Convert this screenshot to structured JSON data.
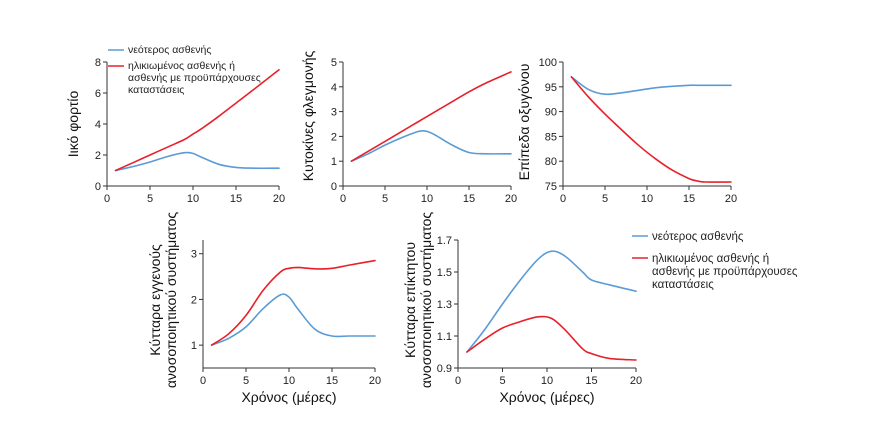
{
  "legend_top": {
    "young": "νεότερος ασθενής",
    "old_lines": [
      "ηλικιωμένος ασθενής ή",
      "ασθενής με προϋπάρχουσες",
      "καταστάσεις"
    ]
  },
  "legend_right": {
    "young": "νεότερος ασθενής",
    "old_lines": [
      "ηλικιωμένος ασθενής ή",
      "ασθενής με προϋπάρχουσες",
      "καταστάσεις"
    ]
  },
  "colors": {
    "young": "#5b9bd5",
    "old": "#e8202a"
  },
  "chart_data": [
    {
      "id": "viral-load",
      "type": "line",
      "title": "",
      "xlabel": "",
      "ylabel_lines": [
        "Ιικό φορτίο"
      ],
      "xlim": [
        0,
        20
      ],
      "ylim": [
        0,
        8
      ],
      "xticks": [
        0,
        5,
        10,
        15,
        20
      ],
      "yticks": [
        0,
        2,
        4,
        6,
        8
      ],
      "x": [
        1,
        3,
        5,
        7,
        9,
        10,
        11,
        13,
        15,
        17,
        20
      ],
      "series": [
        {
          "name": "νεότερος ασθενής",
          "key": "young",
          "values": [
            1.0,
            1.25,
            1.55,
            1.9,
            2.15,
            2.1,
            1.85,
            1.4,
            1.2,
            1.15,
            1.15
          ]
        },
        {
          "name": "ηλικιωμένος ασθενής ή ασθενής με προϋπάρχουσες καταστάσεις",
          "key": "old",
          "values": [
            1.0,
            1.5,
            2.0,
            2.5,
            3.0,
            3.35,
            3.7,
            4.5,
            5.35,
            6.2,
            7.5
          ]
        }
      ]
    },
    {
      "id": "inflammatory-cytokines",
      "type": "line",
      "title": "",
      "xlabel": "",
      "ylabel_lines": [
        "Κυτοκίνες φλεγμονής"
      ],
      "xlim": [
        0,
        20
      ],
      "ylim": [
        0,
        5
      ],
      "xticks": [
        0,
        5,
        10,
        15,
        20
      ],
      "yticks": [
        0,
        1,
        2,
        3,
        4,
        5
      ],
      "x": [
        1,
        3,
        5,
        7,
        9,
        10,
        11,
        13,
        15,
        17,
        20
      ],
      "series": [
        {
          "name": "νεότερος ασθενής",
          "key": "young",
          "values": [
            1.0,
            1.3,
            1.65,
            1.95,
            2.2,
            2.2,
            2.05,
            1.65,
            1.35,
            1.3,
            1.3
          ]
        },
        {
          "name": "ηλικιωμένος ασθενής ή ασθενής με προϋπάρχουσες καταστάσεις",
          "key": "old",
          "values": [
            1.0,
            1.4,
            1.8,
            2.2,
            2.6,
            2.8,
            3.0,
            3.4,
            3.8,
            4.15,
            4.6
          ]
        }
      ]
    },
    {
      "id": "oxygen-levels",
      "type": "line",
      "title": "",
      "xlabel": "",
      "ylabel_lines": [
        "Επίπεδα οξυγόνου"
      ],
      "xlim": [
        0,
        20
      ],
      "ylim": [
        75,
        100
      ],
      "xticks": [
        0,
        5,
        10,
        15,
        20
      ],
      "yticks": [
        75,
        80,
        85,
        90,
        95,
        100
      ],
      "x": [
        1,
        3,
        5,
        7,
        9,
        11,
        13,
        15,
        16,
        17,
        20
      ],
      "series": [
        {
          "name": "νεότερος ασθενής",
          "key": "young",
          "values": [
            97,
            94.5,
            93.5,
            93.8,
            94.3,
            94.8,
            95.1,
            95.3,
            95.3,
            95.3,
            95.3
          ]
        },
        {
          "name": "ηλικιωμένος ασθενής ή ασθενής με προϋπάρχουσες καταστάσεις",
          "key": "old",
          "values": [
            97,
            93,
            89.5,
            86.3,
            83.2,
            80.5,
            78.2,
            76.5,
            76.0,
            75.8,
            75.8
          ]
        }
      ]
    },
    {
      "id": "innate-immune-cells",
      "type": "line",
      "title": "",
      "xlabel": "Χρόνος (μέρες)",
      "ylabel_lines": [
        "Κύτταρα εγγενούς",
        "ανοσοποιητικού συστήματος"
      ],
      "xlim": [
        0,
        20
      ],
      "ylim": [
        0.5,
        3.3
      ],
      "xticks": [
        0,
        5,
        10,
        15,
        20
      ],
      "yticks": [
        1,
        2,
        3
      ],
      "x": [
        1,
        3,
        5,
        7,
        9,
        10,
        11,
        13,
        15,
        17,
        20
      ],
      "series": [
        {
          "name": "νεότερος ασθενής",
          "key": "young",
          "values": [
            1.0,
            1.15,
            1.4,
            1.8,
            2.1,
            2.05,
            1.8,
            1.35,
            1.2,
            1.2,
            1.2
          ]
        },
        {
          "name": "ηλικιωμένος ασθενής ή ασθενής με προϋπάρχουσες καταστάσεις",
          "key": "old",
          "values": [
            1.0,
            1.25,
            1.65,
            2.2,
            2.6,
            2.68,
            2.7,
            2.67,
            2.68,
            2.75,
            2.85
          ]
        }
      ]
    },
    {
      "id": "adaptive-immune-cells",
      "type": "line",
      "title": "",
      "xlabel": "Χρόνος (μέρες)",
      "ylabel_lines": [
        "Κύτταρα επίκτητου",
        "ανοσοποιητικού συστήματος"
      ],
      "xlim": [
        0,
        20
      ],
      "ylim": [
        0.9,
        1.7
      ],
      "xticks": [
        0,
        5,
        10,
        15,
        20
      ],
      "yticks": [
        0.9,
        1.1,
        1.3,
        1.5,
        1.7
      ],
      "x": [
        1,
        3,
        5,
        7,
        9,
        10.5,
        12,
        14,
        15,
        17,
        20
      ],
      "series": [
        {
          "name": "νεότερος ασθενής",
          "key": "young",
          "values": [
            1.0,
            1.14,
            1.3,
            1.45,
            1.58,
            1.63,
            1.6,
            1.5,
            1.45,
            1.42,
            1.38
          ]
        },
        {
          "name": "ηλικιωμένος ασθενής ή ασθενής με προϋπάρχουσες καταστάσεις",
          "key": "old",
          "values": [
            1.0,
            1.08,
            1.15,
            1.19,
            1.22,
            1.21,
            1.14,
            1.02,
            0.99,
            0.96,
            0.95
          ]
        }
      ]
    }
  ]
}
